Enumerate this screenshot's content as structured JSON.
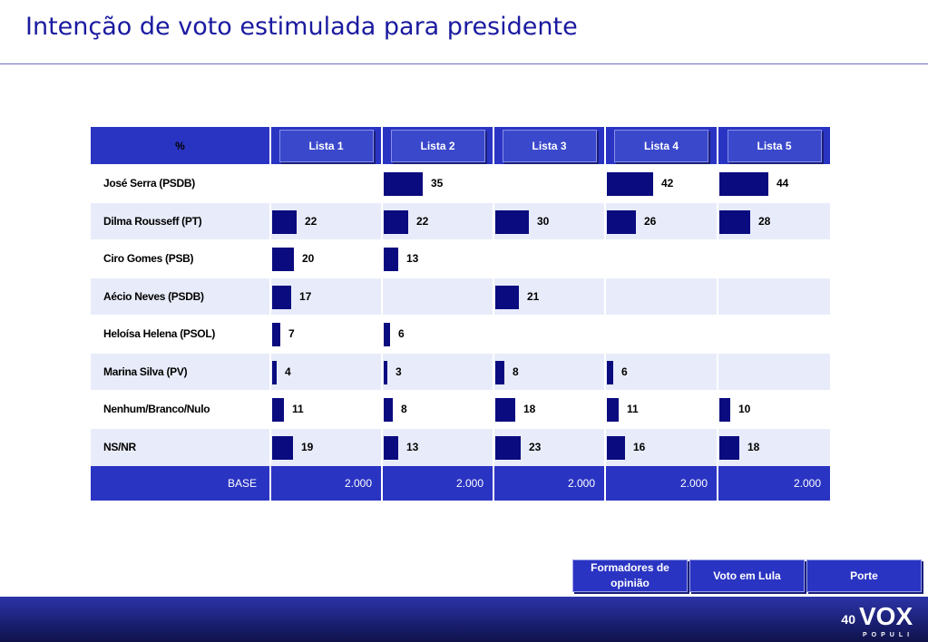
{
  "title": "Intenção de voto estimulada para presidente",
  "chart_data": {
    "type": "bar",
    "header_label": "%",
    "categories": [
      "José Serra (PSDB)",
      "Dilma Rousseff (PT)",
      "Ciro Gomes (PSB)",
      "Aécio Neves (PSDB)",
      "Heloísa Helena (PSOL)",
      "Marina Silva (PV)",
      "Nenhum/Branco/Nulo",
      "NS/NR"
    ],
    "series": [
      {
        "name": "Lista 1",
        "values": [
          null,
          22,
          20,
          17,
          7,
          4,
          11,
          19
        ]
      },
      {
        "name": "Lista 2",
        "values": [
          35,
          22,
          13,
          null,
          6,
          3,
          8,
          13
        ]
      },
      {
        "name": "Lista 3",
        "values": [
          null,
          30,
          null,
          21,
          null,
          8,
          18,
          23
        ]
      },
      {
        "name": "Lista 4",
        "values": [
          42,
          26,
          null,
          null,
          null,
          6,
          11,
          16
        ]
      },
      {
        "name": "Lista 5",
        "values": [
          44,
          28,
          null,
          null,
          null,
          null,
          10,
          18
        ]
      }
    ],
    "base_label": "BASE",
    "base_values": [
      "2.000",
      "2.000",
      "2.000",
      "2.000",
      "2.000"
    ],
    "bar_color": "#0b0b80",
    "header_color": "#2a34c2"
  },
  "nav": {
    "formadores": "Formadores de opinião",
    "voto_lula": "Voto em Lula",
    "porte": "Porte"
  },
  "footer": {
    "page_number": "40",
    "logo_text": "VOX",
    "logo_subtext": "POPULI"
  }
}
